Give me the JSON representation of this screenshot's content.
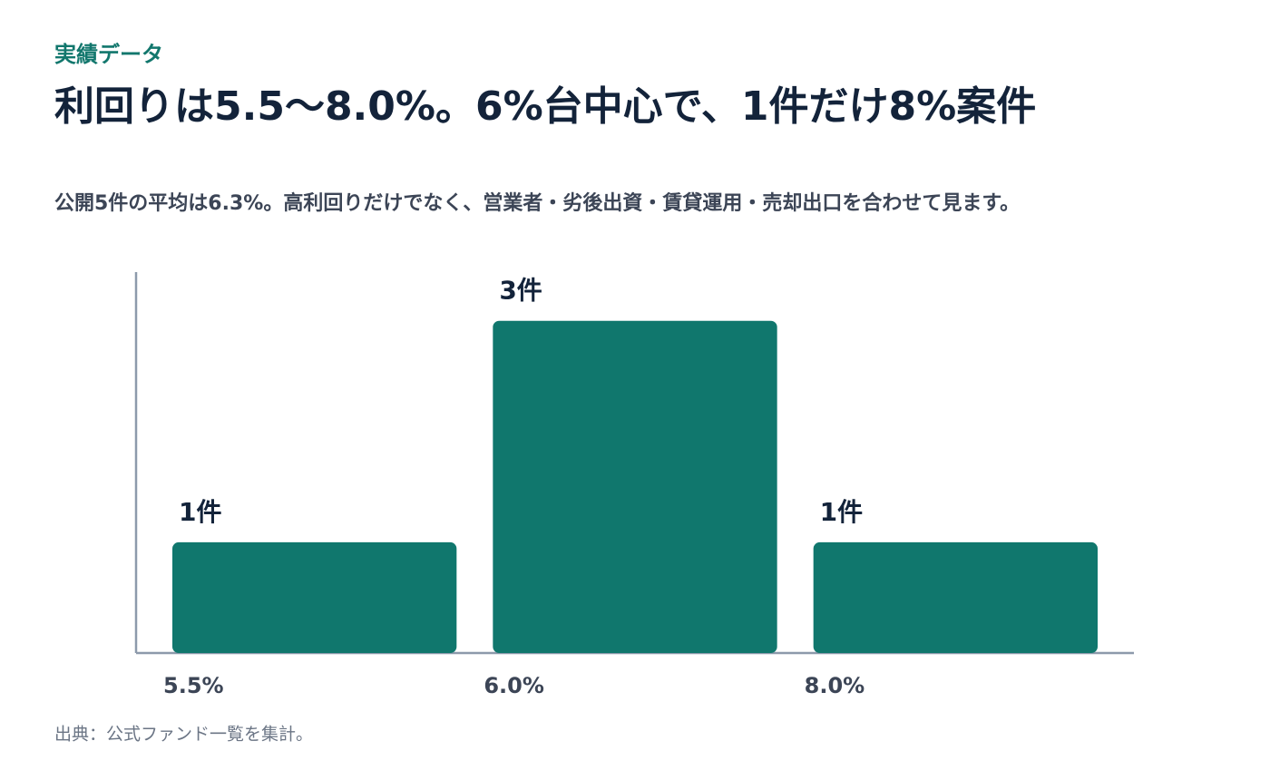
{
  "chart_data": {
    "type": "bar",
    "kicker": "実績データ",
    "title": "利回りは5.5〜8.0%。6%台中心で、1件だけ8%案件",
    "subtitle": "公開5件の平均は6.3%。高利回りだけでなく、営業者・劣後出資・賃貸運用・売却出口を合わせて見ます。",
    "source": "出典：公式ファンド一覧を集計。",
    "categories": [
      "5.5%",
      "6.0%",
      "8.0%"
    ],
    "values": [
      1,
      3,
      1
    ],
    "value_labels": [
      "1件",
      "3件",
      "1件"
    ],
    "color": "#10776d",
    "ylim": [
      0,
      3.44
    ]
  }
}
